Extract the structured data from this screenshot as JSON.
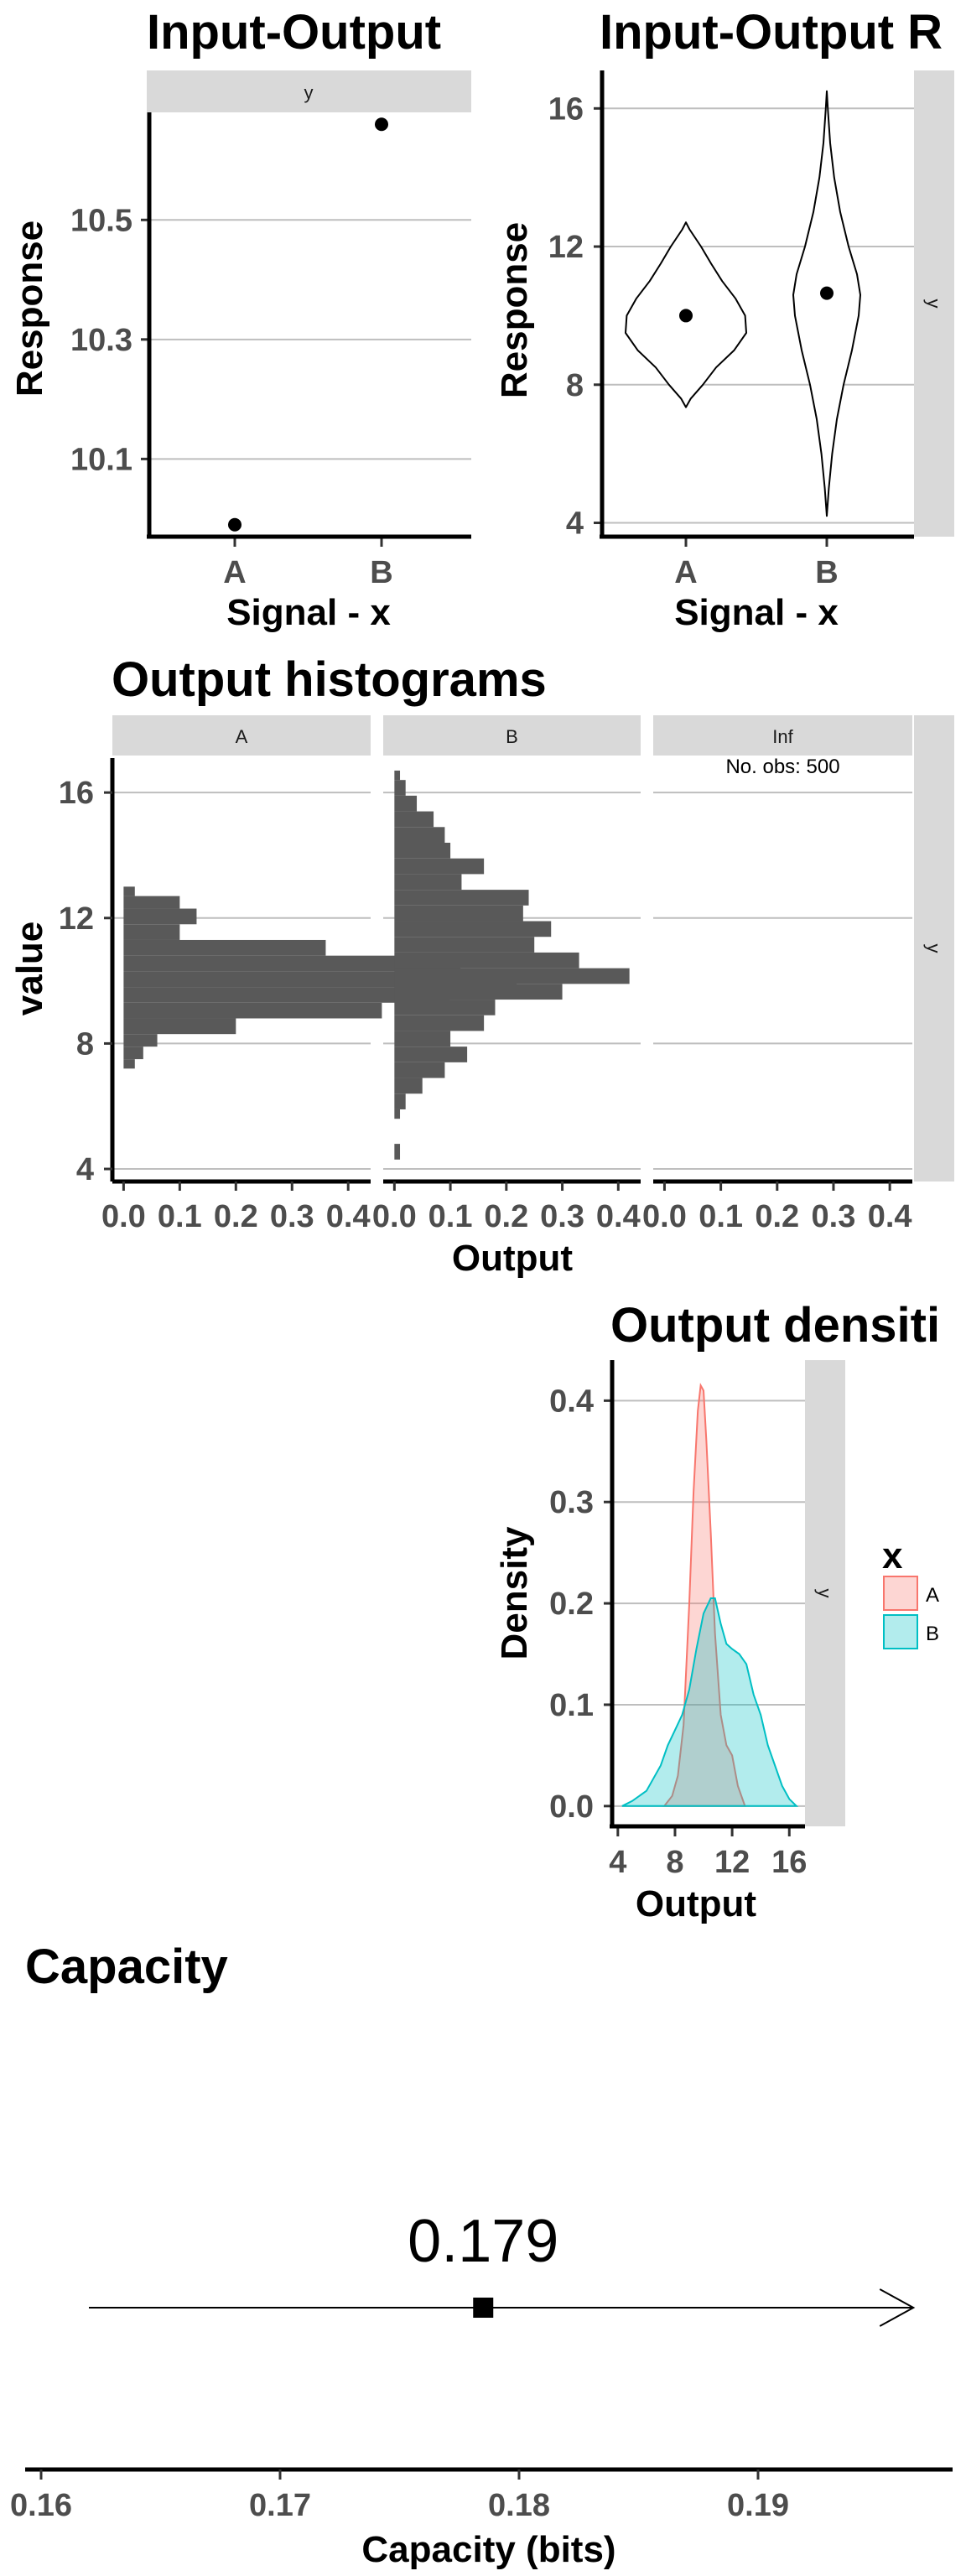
{
  "chart_data": [
    {
      "type": "scatter",
      "title": "Input-Output",
      "strip": "y",
      "xlabel": "Signal - x",
      "ylabel": "Response",
      "categories": [
        "A",
        "B"
      ],
      "values": [
        9.99,
        10.66
      ],
      "ylim": [
        9.97,
        10.68
      ],
      "yticks": [
        10.1,
        10.3,
        10.5
      ],
      "grid": true
    },
    {
      "type": "violin",
      "title": "Input-Output R",
      "strip": "y",
      "xlabel": "Signal - x",
      "ylabel": "Response",
      "categories": [
        "A",
        "B"
      ],
      "means": [
        10.0,
        10.65
      ],
      "violins": [
        {
          "y": [
            7.35,
            7.6,
            8.0,
            8.5,
            9.0,
            9.5,
            10.0,
            10.5,
            11.0,
            11.5,
            12.0,
            12.5,
            12.7
          ],
          "w": [
            0.0,
            0.08,
            0.28,
            0.5,
            0.8,
            1.0,
            0.98,
            0.82,
            0.6,
            0.42,
            0.25,
            0.06,
            0.0
          ]
        },
        {
          "y": [
            4.2,
            5.0,
            6.0,
            7.0,
            8.0,
            9.0,
            10.0,
            10.6,
            11.2,
            12.0,
            13.0,
            14.0,
            15.0,
            16.0,
            16.5
          ],
          "w": [
            0.0,
            0.06,
            0.16,
            0.3,
            0.5,
            0.75,
            0.95,
            1.0,
            0.9,
            0.65,
            0.4,
            0.22,
            0.1,
            0.03,
            0.0
          ]
        }
      ],
      "ylim": [
        3.6,
        17.1
      ],
      "yticks": [
        4,
        8,
        12,
        16
      ],
      "grid": true
    },
    {
      "type": "bar",
      "orientation": "horizontal",
      "title": "Output histograms",
      "strip": "y",
      "xlabel": "Output",
      "ylabel": "value",
      "panels": [
        {
          "name": "A",
          "note": "",
          "bins": [
            [
              7.2,
              7.5,
              0.02
            ],
            [
              7.5,
              7.9,
              0.035
            ],
            [
              7.9,
              8.3,
              0.06
            ],
            [
              8.3,
              8.8,
              0.2
            ],
            [
              8.8,
              9.3,
              0.46
            ],
            [
              9.3,
              9.8,
              0.58
            ],
            [
              9.8,
              10.3,
              0.7
            ],
            [
              10.3,
              10.8,
              0.6
            ],
            [
              10.8,
              11.3,
              0.36
            ],
            [
              11.3,
              11.8,
              0.1
            ],
            [
              11.8,
              12.3,
              0.13
            ],
            [
              12.3,
              12.7,
              0.1
            ],
            [
              12.7,
              13.0,
              0.02
            ]
          ]
        },
        {
          "name": "B",
          "note": "",
          "bins": [
            [
              4.3,
              4.8,
              0.01
            ],
            [
              5.6,
              5.9,
              0.01
            ],
            [
              5.9,
              6.4,
              0.02
            ],
            [
              6.4,
              6.9,
              0.05
            ],
            [
              6.9,
              7.4,
              0.09
            ],
            [
              7.4,
              7.9,
              0.13
            ],
            [
              7.9,
              8.4,
              0.1
            ],
            [
              8.4,
              8.9,
              0.16
            ],
            [
              8.9,
              9.4,
              0.18
            ],
            [
              9.4,
              9.9,
              0.3
            ],
            [
              9.9,
              10.4,
              0.42
            ],
            [
              10.4,
              10.9,
              0.33
            ],
            [
              10.9,
              11.4,
              0.25
            ],
            [
              11.4,
              11.9,
              0.28
            ],
            [
              11.9,
              12.4,
              0.23
            ],
            [
              12.4,
              12.9,
              0.24
            ],
            [
              12.9,
              13.4,
              0.12
            ],
            [
              13.4,
              13.9,
              0.16
            ],
            [
              13.9,
              14.4,
              0.1
            ],
            [
              14.4,
              14.9,
              0.09
            ],
            [
              14.9,
              15.4,
              0.07
            ],
            [
              15.4,
              15.9,
              0.04
            ],
            [
              15.9,
              16.4,
              0.02
            ],
            [
              16.4,
              16.7,
              0.01
            ]
          ]
        },
        {
          "name": "Inf",
          "note": "No. obs: 500",
          "bins": []
        }
      ],
      "xlim": [
        -0.02,
        0.44
      ],
      "xticks": [
        0.0,
        0.1,
        0.2,
        0.3,
        0.4
      ],
      "ylim": [
        3.6,
        17.1
      ],
      "yticks": [
        4,
        8,
        12,
        16
      ],
      "grid": true
    },
    {
      "type": "area",
      "title": "Output densiti",
      "strip": "y",
      "xlabel": "Output",
      "ylabel": "Density",
      "legend_title": "x",
      "legend_position": "right",
      "series": [
        {
          "name": "A",
          "fill": "#f8766d",
          "x": [
            7.25,
            7.8,
            8.2,
            8.6,
            9.0,
            9.3,
            9.6,
            9.8,
            10.0,
            10.2,
            10.5,
            10.8,
            11.2,
            11.6,
            12.0,
            12.4,
            12.9
          ],
          "y": [
            0.0,
            0.01,
            0.03,
            0.08,
            0.2,
            0.31,
            0.39,
            0.415,
            0.41,
            0.36,
            0.27,
            0.17,
            0.09,
            0.06,
            0.05,
            0.02,
            0.0
          ]
        },
        {
          "name": "B",
          "fill": "#00bfc4",
          "x": [
            4.3,
            5.0,
            6.0,
            7.0,
            7.5,
            8.0,
            8.5,
            9.0,
            9.5,
            10.0,
            10.5,
            10.8,
            11.2,
            11.6,
            12.0,
            12.5,
            13.0,
            13.5,
            14.0,
            14.5,
            15.0,
            15.5,
            16.0,
            16.5
          ],
          "y": [
            0.0,
            0.005,
            0.015,
            0.04,
            0.06,
            0.075,
            0.09,
            0.115,
            0.155,
            0.19,
            0.205,
            0.205,
            0.18,
            0.16,
            0.155,
            0.15,
            0.14,
            0.11,
            0.09,
            0.06,
            0.04,
            0.02,
            0.007,
            0.0
          ]
        }
      ],
      "xlim": [
        3.6,
        17.1
      ],
      "xticks": [
        4,
        8,
        12,
        16
      ],
      "ylim": [
        -0.02,
        0.44
      ],
      "yticks": [
        0.0,
        0.1,
        0.2,
        0.3,
        0.4
      ],
      "grid": true
    },
    {
      "type": "scatter",
      "title": "Capacity",
      "xlabel": "Capacity (bits)",
      "value": 0.1785,
      "value_label": "0.179",
      "arrow_range": [
        0.162,
        0.1965
      ],
      "xlim": [
        0.16,
        0.198
      ],
      "xticks": [
        0.16,
        0.17,
        0.18,
        0.19
      ],
      "grid": false
    }
  ]
}
